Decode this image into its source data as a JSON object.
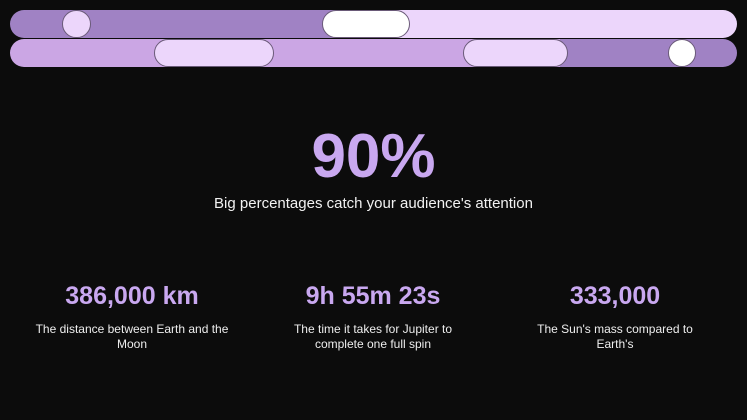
{
  "colors": {
    "accent": "#c9a8f0",
    "dark_segment": "#a082c4",
    "mid_segment": "#cba6e4",
    "light_segment": "#ecd6fb",
    "background": "#0c0c0c"
  },
  "hero": {
    "value": "90%",
    "caption": "Big percentages catch your audience's attention"
  },
  "stats": [
    {
      "value": "386,000 km",
      "description": "The distance between Earth and the Moon"
    },
    {
      "value": "9h 55m 23s",
      "description": "The time it takes for Jupiter to complete one full spin"
    },
    {
      "value": "333,000",
      "description": "The Sun's mass compared to Earth's"
    }
  ]
}
